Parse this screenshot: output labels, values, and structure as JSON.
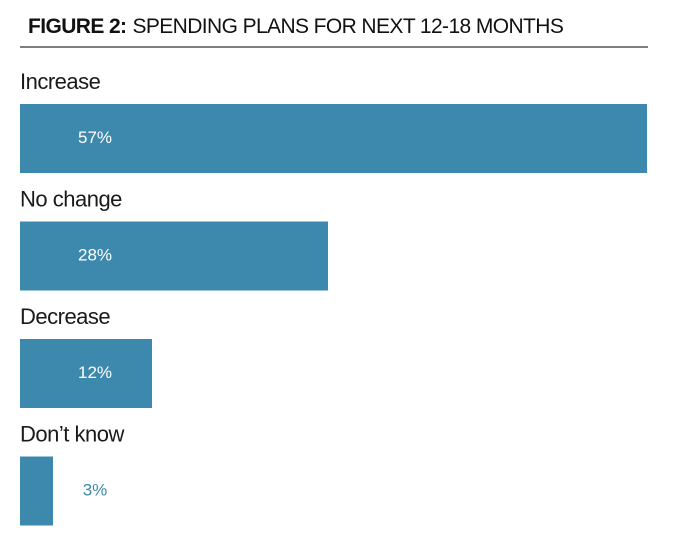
{
  "chart_data": {
    "type": "hbar",
    "title_label": "FIGURE 2:",
    "title": "SPENDING PLANS FOR NEXT 12-18 MONTHS",
    "categories": [
      "Increase",
      "No change",
      "Decrease",
      "Don’t know"
    ],
    "values": [
      57,
      28,
      12,
      3
    ],
    "value_labels": [
      "57%",
      "28%",
      "12%",
      "3%"
    ],
    "color": "#3d89ad"
  }
}
